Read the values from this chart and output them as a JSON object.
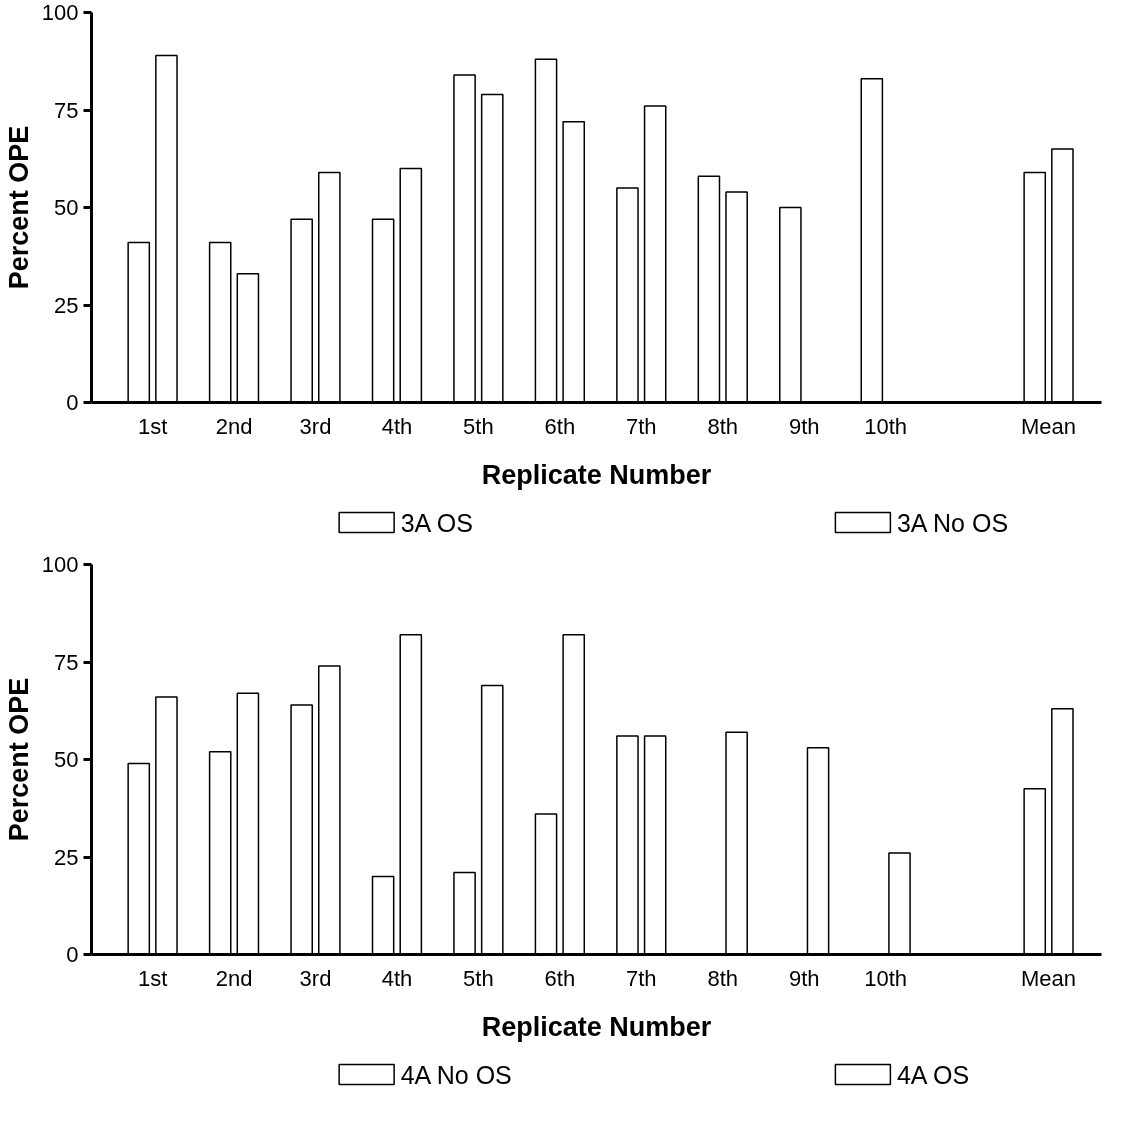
{
  "chart_data": [
    {
      "type": "bar",
      "xlabel": "Replicate Number",
      "ylabel": "Percent OPE",
      "categories": [
        "1st",
        "2nd",
        "3rd",
        "4th",
        "5th",
        "6th",
        "7th",
        "8th",
        "9th",
        "10th",
        null,
        "Mean"
      ],
      "ylim": [
        0,
        100
      ],
      "yticks": [
        0,
        25,
        50,
        75,
        100
      ],
      "legend": "bottom",
      "series": [
        {
          "name": "3A OS",
          "color": "#ffffff",
          "values": [
            41,
            41,
            47,
            47,
            84,
            88,
            55,
            58,
            50,
            83,
            null,
            59
          ]
        },
        {
          "name": "3A No OS",
          "color": "#ffffff",
          "values": [
            89,
            33,
            59,
            60,
            79,
            72,
            76,
            54,
            null,
            null,
            null,
            65
          ]
        }
      ]
    },
    {
      "type": "bar",
      "xlabel": "Replicate Number",
      "ylabel": "Percent OPE",
      "categories": [
        "1st",
        "2nd",
        "3rd",
        "4th",
        "5th",
        "6th",
        "7th",
        "8th",
        "9th",
        "10th",
        null,
        "Mean"
      ],
      "ylim": [
        0,
        100
      ],
      "yticks": [
        0,
        25,
        50,
        75,
        100
      ],
      "legend": "bottom",
      "series": [
        {
          "name": "4A No OS",
          "color": "#ffffff",
          "values": [
            49,
            52,
            64,
            20,
            21,
            36,
            56,
            null,
            null,
            null,
            null,
            42.5
          ]
        },
        {
          "name": "4A OS",
          "color": "#ffffff",
          "values": [
            66,
            67,
            74,
            82,
            69,
            82,
            56,
            57,
            53,
            26,
            null,
            63
          ]
        }
      ]
    }
  ]
}
